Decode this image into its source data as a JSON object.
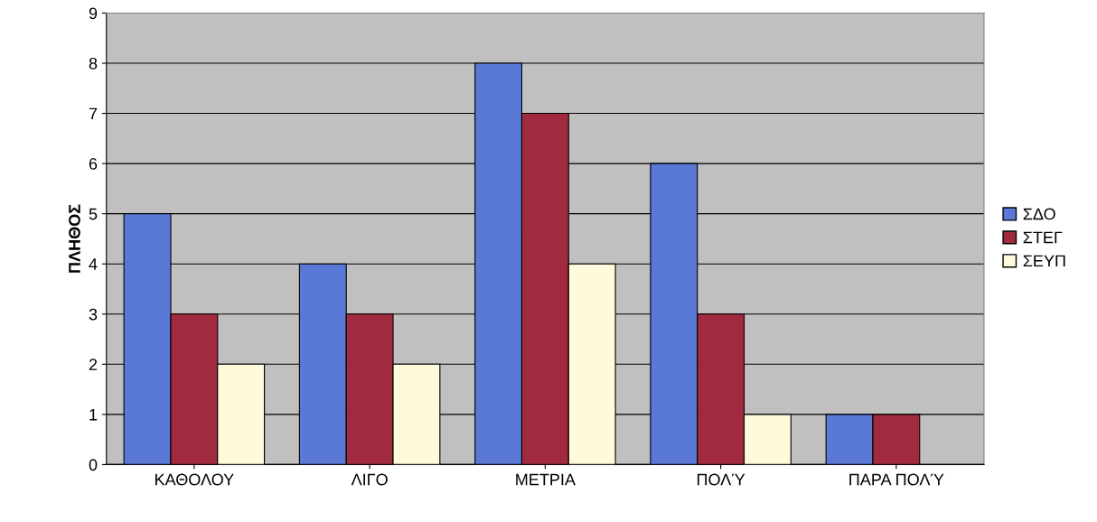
{
  "chart_data": {
    "type": "bar",
    "ylabel": "ΠΛΗΘΟΣ",
    "categories": [
      "ΚΑΘΟΛΟΥ",
      "ΛΙΓΟ",
      "ΜΕΤΡΙΑ",
      "ΠΟΛΎ",
      "ΠΑΡΑ ΠΟΛΎ"
    ],
    "series": [
      {
        "name": "ΣΔΟ",
        "color": "#5a78d6",
        "values": [
          5,
          4,
          8,
          6,
          1
        ]
      },
      {
        "name": "ΣΤΕΓ",
        "color": "#a12a3e",
        "values": [
          3,
          3,
          7,
          3,
          1
        ]
      },
      {
        "name": "ΣΕΥΠ",
        "color": "#fdfbdc",
        "values": [
          2,
          2,
          4,
          1,
          null
        ]
      }
    ],
    "ylim": [
      0,
      9
    ],
    "yticks": [
      0,
      1,
      2,
      3,
      4,
      5,
      6,
      7,
      8,
      9
    ],
    "grid": "y",
    "legend": "right"
  }
}
